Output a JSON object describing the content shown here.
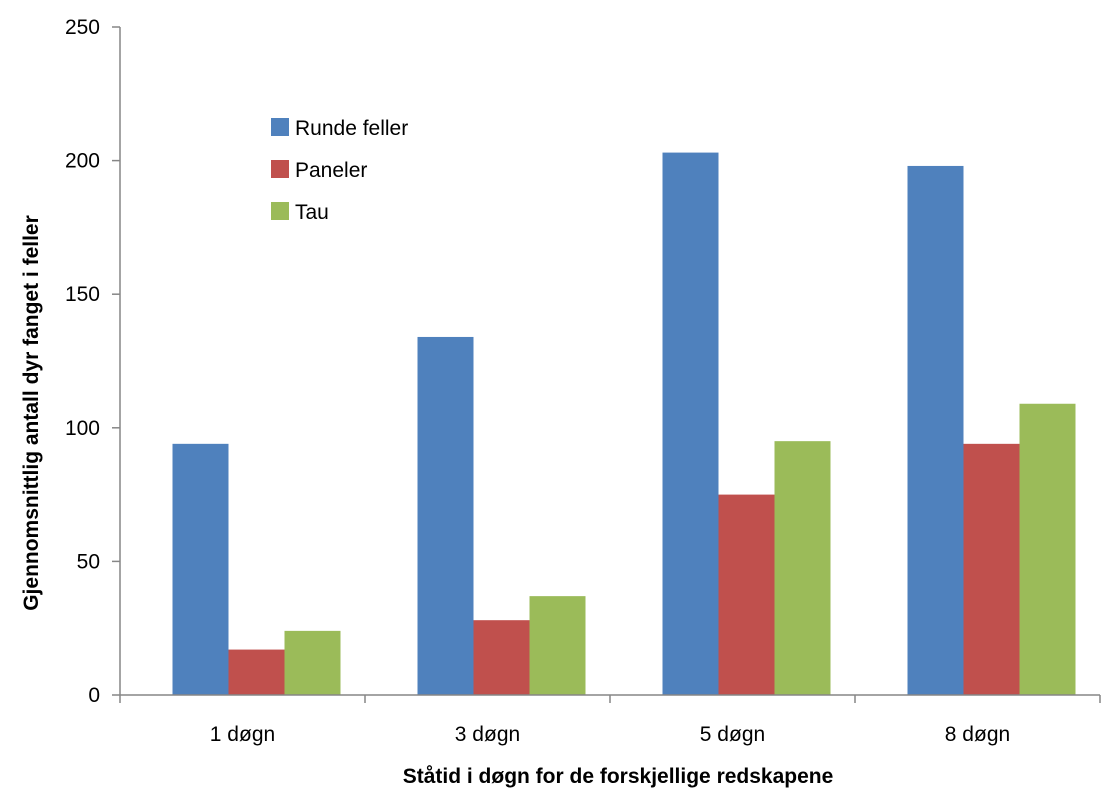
{
  "chart_data": {
    "type": "bar",
    "title": "",
    "xlabel": "Ståtid i døgn for de forskjellige redskapene",
    "ylabel": "Gjennomsnittlig antall dyr fanget i feller",
    "categories": [
      "1 døgn",
      "3 døgn",
      "5 døgn",
      "8 døgn"
    ],
    "ylim": [
      0,
      250
    ],
    "yticks": [
      0,
      50,
      100,
      150,
      200,
      250
    ],
    "grid": false,
    "legend_position": "top-left",
    "series": [
      {
        "name": "Runde feller",
        "color": "#4f81bd",
        "values": [
          94,
          134,
          203,
          198
        ]
      },
      {
        "name": "Paneler",
        "color": "#c0504d",
        "values": [
          17,
          28,
          75,
          94
        ]
      },
      {
        "name": "Tau",
        "color": "#9bbb59",
        "values": [
          24,
          37,
          95,
          109
        ]
      }
    ]
  }
}
